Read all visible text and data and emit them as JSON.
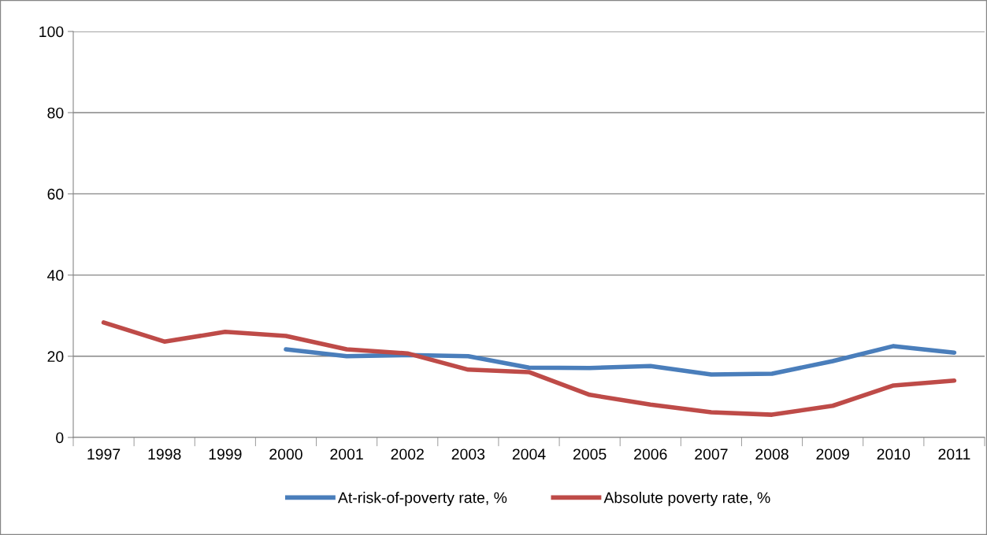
{
  "chart_data": {
    "type": "line",
    "categories": [
      "1997",
      "1998",
      "1999",
      "2000",
      "2001",
      "2002",
      "2003",
      "2004",
      "2005",
      "2006",
      "2007",
      "2008",
      "2009",
      "2010",
      "2011"
    ],
    "series": [
      {
        "name": "At-risk-of-poverty rate, %",
        "color": "#4a7ebb",
        "values": [
          null,
          null,
          null,
          21.7,
          20.0,
          20.3,
          20.0,
          17.2,
          17.1,
          17.6,
          15.5,
          15.7,
          18.8,
          22.5,
          20.9
        ]
      },
      {
        "name": "Absolute poverty rate, %",
        "color": "#be4b48",
        "values": [
          28.3,
          23.6,
          26.0,
          25.0,
          21.7,
          20.7,
          16.7,
          16.1,
          10.5,
          8.1,
          6.2,
          5.6,
          7.8,
          12.8,
          14.0
        ]
      }
    ],
    "ylim": [
      0,
      100
    ],
    "yticks": [
      0,
      20,
      40,
      60,
      80,
      100
    ],
    "grid": "y",
    "legend": "bottom",
    "marker": "none",
    "line_style": "solid"
  }
}
